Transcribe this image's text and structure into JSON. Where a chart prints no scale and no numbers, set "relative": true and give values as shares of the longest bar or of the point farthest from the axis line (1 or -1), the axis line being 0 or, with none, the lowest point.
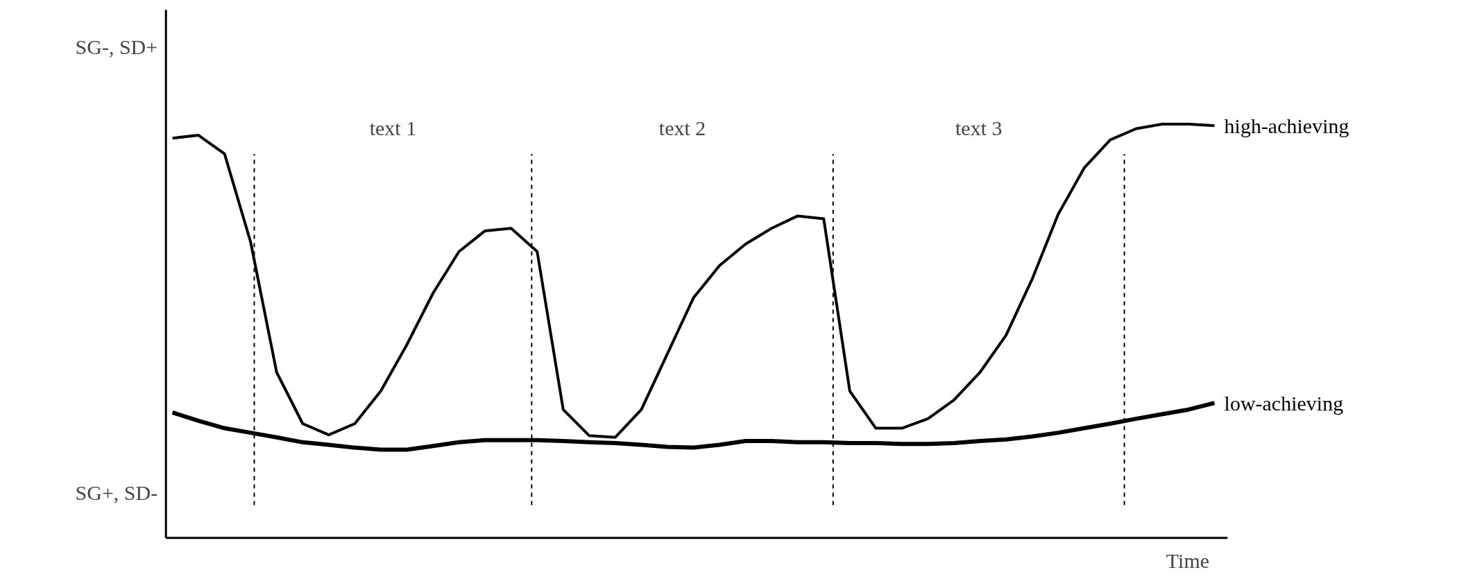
{
  "chart_data": {
    "type": "line",
    "relative": true,
    "xlabel": "Time",
    "marker": "none",
    "line_style": "solid",
    "categories": [
      null,
      null,
      null,
      null,
      null,
      null,
      null,
      null,
      null,
      null,
      null,
      null,
      null,
      null,
      null,
      null,
      null,
      null,
      null,
      null,
      null,
      null,
      null,
      null,
      null,
      null,
      null,
      null,
      null,
      null,
      null,
      null,
      null,
      null,
      null,
      null,
      null,
      null,
      null,
      null,
      null
    ],
    "series": [
      {
        "name": "high-achieving",
        "color": "#000000",
        "values": [
          0.966,
          0.973,
          0.928,
          0.715,
          0.4,
          0.276,
          0.249,
          0.276,
          0.355,
          0.467,
          0.591,
          0.692,
          0.742,
          0.748,
          0.692,
          0.31,
          0.247,
          0.243,
          0.31,
          0.445,
          0.58,
          0.658,
          0.71,
          0.748,
          0.778,
          0.771,
          0.355,
          0.265,
          0.265,
          0.288,
          0.333,
          0.4,
          0.49,
          0.625,
          0.782,
          0.894,
          0.962,
          0.989,
          1,
          1,
          0.996
        ]
      },
      {
        "name": "low-achieving",
        "color": "#000000",
        "values": [
          0.303,
          0.283,
          0.265,
          0.254,
          0.243,
          0.231,
          0.225,
          0.218,
          0.213,
          0.213,
          0.222,
          0.231,
          0.236,
          0.236,
          0.236,
          0.234,
          0.231,
          0.229,
          0.225,
          0.22,
          0.218,
          0.225,
          0.234,
          0.234,
          0.231,
          0.231,
          0.229,
          0.229,
          0.227,
          0.227,
          0.229,
          0.234,
          0.238,
          0.245,
          0.254,
          0.265,
          0.276,
          0.288,
          0.299,
          0.31,
          0.326
        ]
      }
    ],
    "annotations": [
      "text 1",
      "text 2",
      "text 3",
      "SG-, SD+",
      "SG+, SD-"
    ]
  }
}
